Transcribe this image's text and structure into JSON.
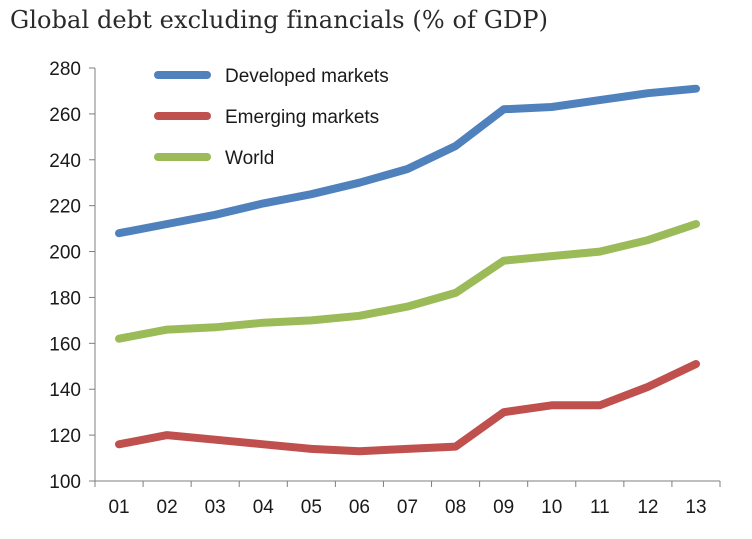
{
  "chart_data": {
    "type": "line",
    "title": "Global debt excluding financials (% of GDP)",
    "xlabel": "",
    "ylabel": "",
    "categories": [
      "01",
      "02",
      "03",
      "04",
      "05",
      "06",
      "07",
      "08",
      "09",
      "10",
      "11",
      "12",
      "13"
    ],
    "ylim": [
      100,
      280
    ],
    "yticks": [
      100,
      120,
      140,
      160,
      180,
      200,
      220,
      240,
      260,
      280
    ],
    "grid": false,
    "legend_position": "top-left",
    "series": [
      {
        "name": "Developed markets",
        "color": "#4F81BD",
        "values": [
          208,
          212,
          216,
          221,
          225,
          230,
          236,
          246,
          262,
          263,
          266,
          269,
          271
        ]
      },
      {
        "name": "Emerging markets",
        "color": "#C0504D",
        "values": [
          116,
          120,
          118,
          116,
          114,
          113,
          114,
          115,
          130,
          133,
          133,
          141,
          151
        ]
      },
      {
        "name": "World",
        "color": "#9BBB59",
        "values": [
          162,
          166,
          167,
          169,
          170,
          172,
          176,
          182,
          196,
          198,
          200,
          205,
          212
        ]
      }
    ]
  }
}
